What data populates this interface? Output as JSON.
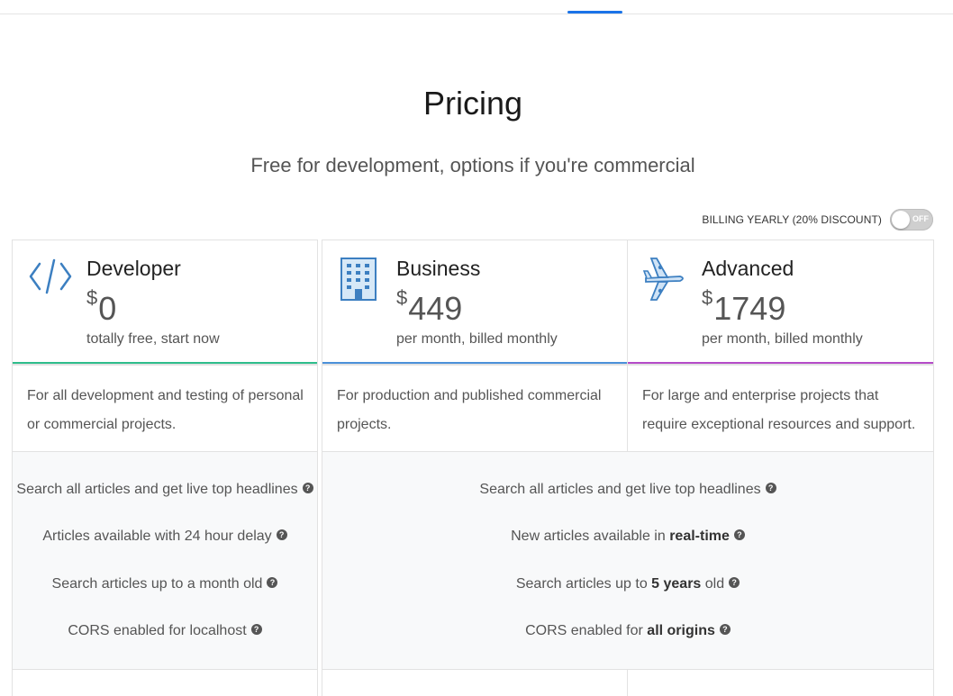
{
  "page": {
    "title": "Pricing",
    "subtitle": "Free for development, options if you're commercial"
  },
  "billing": {
    "label": "BILLING YEARLY (20% DISCOUNT)",
    "toggle_state": "OFF"
  },
  "colors": {
    "developer_bar": "#2ebd8c",
    "business_bar": "#4a90d9",
    "advanced_bar": "#b44ac8",
    "icon_blue": "#3c7fc1"
  },
  "plans": [
    {
      "icon": "code-icon",
      "name": "Developer",
      "currency": "$",
      "price": "0",
      "period": "totally free, start now",
      "description": "For all development and testing of personal or commercial projects."
    },
    {
      "icon": "building-icon",
      "name": "Business",
      "currency": "$",
      "price": "449",
      "period": "per month, billed monthly",
      "description": "For production and published commercial projects."
    },
    {
      "icon": "airplane-icon",
      "name": "Advanced",
      "currency": "$",
      "price": "1749",
      "period": "per month, billed monthly",
      "description": "For large and enterprise projects that require exceptional resources and support."
    }
  ],
  "developer_features": [
    {
      "text": "Search all articles and get live top headlines"
    },
    {
      "text": "Articles available with 24 hour delay"
    },
    {
      "text": "Search articles up to a month old"
    },
    {
      "text": "CORS enabled for localhost"
    }
  ],
  "paid_features": [
    {
      "pre": "Search all articles and get live top headlines",
      "bold": "",
      "post": ""
    },
    {
      "pre": "New articles available in ",
      "bold": "real-time",
      "post": ""
    },
    {
      "pre": "Search articles up to ",
      "bold": "5 years",
      "post": " old"
    },
    {
      "pre": "CORS enabled for ",
      "bold": "all origins",
      "post": ""
    }
  ],
  "help_glyph": "?"
}
